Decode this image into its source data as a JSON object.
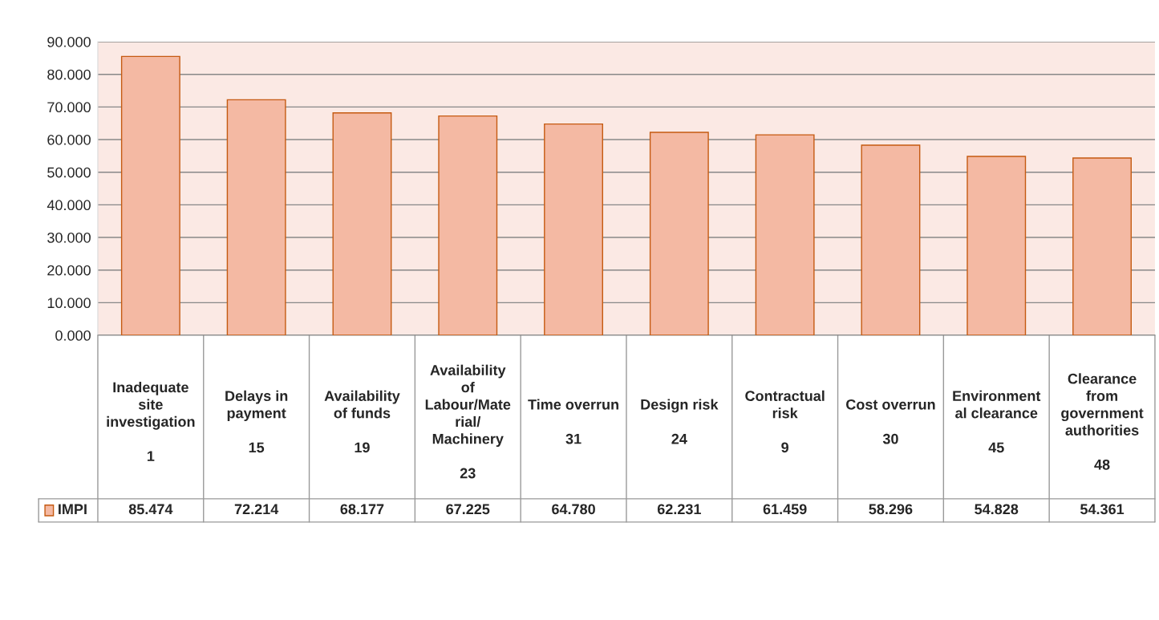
{
  "chart_data": {
    "type": "bar",
    "categories": [
      "Inadequate\nsite\ninvestigation\n\n1",
      "Delays in\npayment\n\n15",
      "Availability\nof funds\n\n19",
      "Availability\nof\nLabour/Mate\nrial/\nMachinery\n\n23",
      "Time overrun\n\n31",
      "Design risk\n\n24",
      "Contractual\nrisk\n\n9",
      "Cost overrun\n\n30",
      "Environment\nal clearance\n\n45",
      "Clearance\nfrom\ngovernment\nauthorities\n\n48"
    ],
    "series": [
      {
        "name": "IMPI",
        "color": "#f4b9a3",
        "values": [
          85.474,
          72.214,
          68.177,
          67.225,
          64.78,
          62.231,
          61.459,
          58.296,
          54.828,
          54.361
        ]
      }
    ],
    "value_labels": [
      "85.474",
      "72.214",
      "68.177",
      "67.225",
      "64.780",
      "62.231",
      "61.459",
      "58.296",
      "54.828",
      "54.361"
    ],
    "ylim": [
      0,
      90
    ],
    "yticks": [
      {
        "value": 0,
        "label": "0.000"
      },
      {
        "value": 10,
        "label": "10.000"
      },
      {
        "value": 20,
        "label": "20.000"
      },
      {
        "value": 30,
        "label": "30.000"
      },
      {
        "value": 40,
        "label": "40.000"
      },
      {
        "value": 50,
        "label": "50.000"
      },
      {
        "value": 60,
        "label": "60.000"
      },
      {
        "value": 70,
        "label": "70.000"
      },
      {
        "value": 80,
        "label": "80.000"
      },
      {
        "value": 90,
        "label": "90.000"
      }
    ],
    "grid": "y",
    "legend": "bottom left"
  }
}
